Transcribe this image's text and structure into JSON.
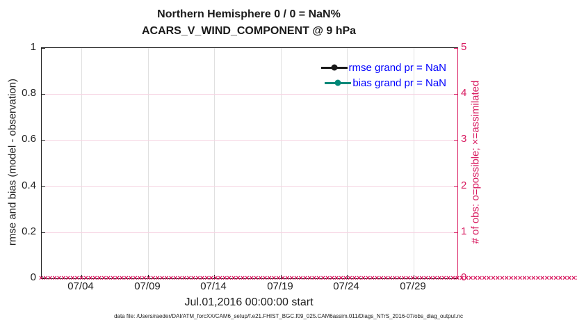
{
  "title": {
    "line1": "Northern Hemisphere 0 / 0 = NaN%",
    "line2": "ACARS_V_WIND_COMPONENT @ 9 hPa"
  },
  "axes": {
    "left": {
      "label": "rmse and bias (model - observation)",
      "ticks": [
        "0",
        "0.2",
        "0.4",
        "0.6",
        "0.8",
        "1"
      ],
      "color": "#212121"
    },
    "right": {
      "label": "# of obs: o=possible; ×=assimilated",
      "ticks": [
        "0",
        "1",
        "2",
        "3",
        "4",
        "5"
      ],
      "color": "#d81b60"
    },
    "x": {
      "label": "Jul.01,2016 00:00:00 start",
      "ticks": [
        "07/04",
        "07/09",
        "07/14",
        "07/19",
        "07/24",
        "07/29"
      ]
    }
  },
  "legend": [
    {
      "label": "rmse grand pr = NaN",
      "line_color": "#1a1a1a"
    },
    {
      "label": "bias grand pr = NaN",
      "line_color": "#008878"
    }
  ],
  "legend_text_color": "#0000ff",
  "obs_band": {
    "symbol": "×",
    "count": 124,
    "color": "#d81b60"
  },
  "caption": "data file: /Users/raeder/DAI/ATM_forcXX/CAM6_setup/f.e21.FHIST_BGC.f09_025.CAM6assim.011/Diags_NTrS_2016-07/obs_diag_output.nc",
  "chart_data": {
    "type": "line",
    "title": "Northern Hemisphere 0 / 0 = NaN%  |  ACARS_V_WIND_COMPONENT @ 9 hPa",
    "x_start": "2016-07-01 00:00:00",
    "x_ticks": [
      "07/04",
      "07/09",
      "07/14",
      "07/19",
      "07/24",
      "07/29"
    ],
    "left_ylabel": "rmse and bias (model - observation)",
    "left_ylim": [
      0,
      1
    ],
    "right_ylabel": "# of obs: o=possible; ×=assimilated",
    "right_ylim": [
      0,
      5
    ],
    "grid": true,
    "legend_position": "upper right, no box",
    "series": [
      {
        "name": "rmse grand pr = NaN",
        "axis": "left",
        "color": "#1a1a1a",
        "marker": "filled-circle",
        "values": "all NaN (nothing plotted)"
      },
      {
        "name": "bias grand pr = NaN",
        "axis": "left",
        "color": "#008878",
        "marker": "filled-circle",
        "values": "all NaN (nothing plotted)"
      },
      {
        "name": "possible obs count",
        "axis": "right",
        "color": "#d81b60",
        "marker": "o",
        "constant_value": 0,
        "n_points": 124
      },
      {
        "name": "assimilated obs count",
        "axis": "right",
        "color": "#d81b60",
        "marker": "×",
        "constant_value": 0,
        "n_points": 124
      }
    ]
  }
}
